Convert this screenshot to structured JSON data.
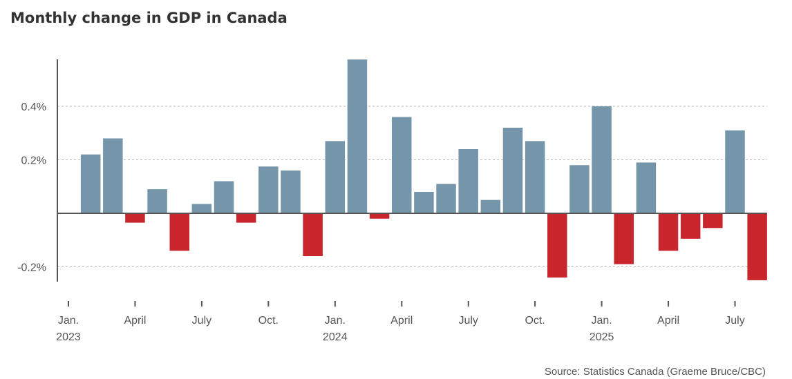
{
  "chart_data": {
    "type": "bar",
    "title": "Monthly change in GDP in Canada",
    "source": "Source: Statistics Canada (Graeme Bruce/CBC)",
    "xlabel": "",
    "ylabel": "",
    "ylim": [
      -0.255,
      0.575
    ],
    "y_ticks": [
      {
        "value": -0.2,
        "label": "-0.2%"
      },
      {
        "value": 0.2,
        "label": "0.2%"
      },
      {
        "value": 0.4,
        "label": "0.4%"
      }
    ],
    "grid": true,
    "colors": {
      "positive": "#7596aa",
      "negative": "#c8252c"
    },
    "months": [
      "Jan. 2023",
      "Feb. 2023",
      "Mar. 2023",
      "Apr. 2023",
      "May 2023",
      "Jun. 2023",
      "Jul. 2023",
      "Aug. 2023",
      "Sep. 2023",
      "Oct. 2023",
      "Nov. 2023",
      "Dec. 2023",
      "Jan. 2024",
      "Feb. 2024",
      "Mar. 2024",
      "Apr. 2024",
      "May 2024",
      "Jun. 2024",
      "Jul. 2024",
      "Aug. 2024",
      "Sep. 2024",
      "Oct. 2024",
      "Nov. 2024",
      "Dec. 2024",
      "Jan. 2025",
      "Feb. 2025",
      "Mar. 2025",
      "Apr. 2025",
      "May 2025",
      "Jun. 2025",
      "Jul. 2025",
      "Aug. 2025"
    ],
    "values": [
      0.0,
      0.22,
      0.28,
      -0.035,
      0.09,
      -0.14,
      0.035,
      0.12,
      -0.035,
      0.175,
      0.16,
      -0.16,
      0.27,
      0.575,
      -0.02,
      0.36,
      0.08,
      0.11,
      0.24,
      0.05,
      0.32,
      0.27,
      -0.24,
      0.18,
      0.4,
      -0.19,
      0.19,
      -0.14,
      -0.095,
      -0.055,
      0.31,
      -0.25
    ],
    "x_ticks": [
      {
        "index": 0,
        "label": "Jan.",
        "year": "2023"
      },
      {
        "index": 3,
        "label": "April"
      },
      {
        "index": 6,
        "label": "July"
      },
      {
        "index": 9,
        "label": "Oct."
      },
      {
        "index": 12,
        "label": "Jan.",
        "year": "2024"
      },
      {
        "index": 15,
        "label": "April"
      },
      {
        "index": 18,
        "label": "July"
      },
      {
        "index": 21,
        "label": "Oct."
      },
      {
        "index": 24,
        "label": "Jan.",
        "year": "2025"
      },
      {
        "index": 27,
        "label": "April"
      },
      {
        "index": 30,
        "label": "July"
      }
    ]
  }
}
